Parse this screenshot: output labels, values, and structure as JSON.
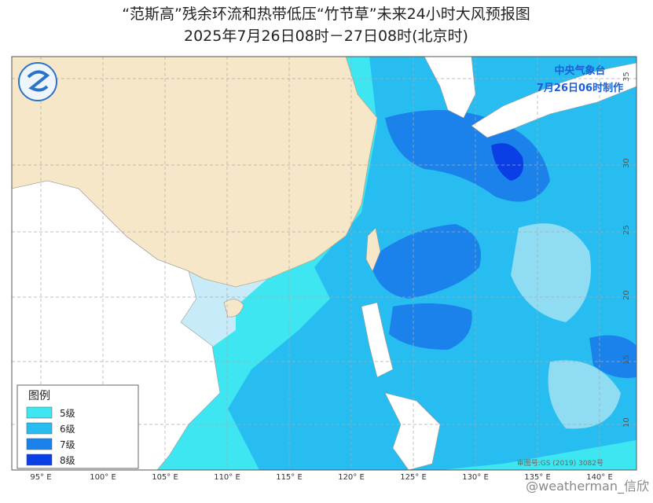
{
  "header": {
    "title": "“范斯高”残余环流和热带低压“竹节草”未来24小时大风预报图",
    "subtitle": "2025年7月26日08时－27日08时(北京时)"
  },
  "issuer": {
    "agency": "中央气象台",
    "issued": "7月26日06时制作"
  },
  "legend": {
    "title": "图例",
    "items": [
      {
        "label": "5级",
        "color": "#3ee6f2"
      },
      {
        "label": "6级",
        "color": "#27bdf0"
      },
      {
        "label": "7级",
        "color": "#1a82ea"
      },
      {
        "label": "8级",
        "color": "#0a3fe6"
      }
    ]
  },
  "longitude_labels": [
    "95° E",
    "100° E",
    "105° E",
    "110° E",
    "115° E",
    "120° E",
    "125° E",
    "130° E",
    "135° E",
    "140° E"
  ],
  "latitude_labels": [
    "35",
    "30",
    "25",
    "20",
    "15",
    "10"
  ],
  "map_approval": "审图号:GS (2019) 3082号",
  "watermark": "@weatherman_信欣"
}
